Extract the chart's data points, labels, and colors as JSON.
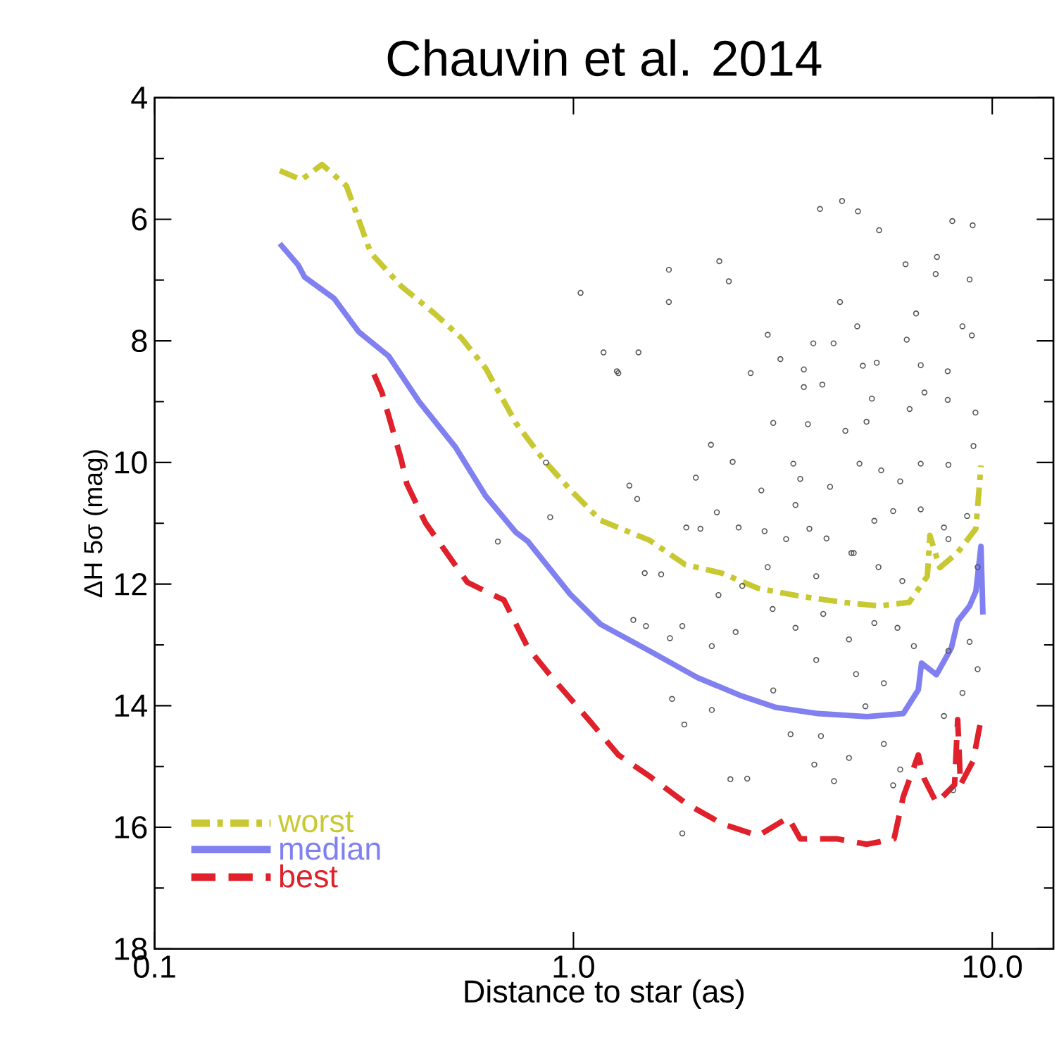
{
  "chart_data": {
    "type": "line",
    "title": "Chauvin et al. 2014",
    "xlabel": "Distance to star (as)",
    "ylabel": "ΔH 5σ (mag)",
    "log": "x",
    "xlim": [
      0.1,
      14
    ],
    "xticks": [
      0.1,
      {
        "value": 1,
        "label": "1.0"
      },
      {
        "value": 10,
        "label": "10.0"
      }
    ],
    "ylim": [
      18,
      4
    ],
    "yticks": [
      4,
      6,
      8,
      10,
      12,
      14,
      16,
      18
    ],
    "legend": "bottom left",
    "marker": "none",
    "series": [
      {
        "name": "worst",
        "color": "#c8c832",
        "line_style": "dashdot",
        "x": [
          0.199,
          0.224,
          0.251,
          0.287,
          0.328,
          0.388,
          0.466,
          0.54,
          0.617,
          0.729,
          0.847,
          0.983,
          1.16,
          1.52,
          1.85,
          2.26,
          2.76,
          3.48,
          4.4,
          5.37,
          6.34,
          7.0,
          7.1,
          7.5,
          8.27,
          9.14,
          9.4
        ],
        "values": [
          5.2,
          5.35,
          5.1,
          5.45,
          6.55,
          7.1,
          7.55,
          7.95,
          8.45,
          9.35,
          9.95,
          10.45,
          10.95,
          11.28,
          11.68,
          11.82,
          12.07,
          12.2,
          12.3,
          12.36,
          12.3,
          11.87,
          11.2,
          11.73,
          11.48,
          11.09,
          10.05
        ]
      },
      {
        "name": "median",
        "color": "#8080f0",
        "line_style": "solid",
        "x": [
          0.199,
          0.22,
          0.228,
          0.268,
          0.307,
          0.362,
          0.428,
          0.523,
          0.617,
          0.729,
          0.779,
          0.983,
          1.16,
          1.52,
          1.98,
          2.5,
          3.05,
          3.84,
          5.02,
          6.13,
          6.66,
          6.78,
          7.36,
          7.99,
          8.27,
          8.83,
          9.14,
          9.4,
          9.5
        ],
        "values": [
          6.4,
          6.75,
          6.95,
          7.3,
          7.85,
          8.25,
          9.0,
          9.75,
          10.55,
          11.15,
          11.3,
          12.17,
          12.66,
          13.1,
          13.54,
          13.83,
          14.03,
          14.13,
          14.18,
          14.13,
          13.74,
          13.3,
          13.49,
          13.05,
          12.61,
          12.36,
          12.12,
          11.38,
          12.5
        ]
      },
      {
        "name": "best",
        "color": "#e0202a",
        "line_style": "dashed",
        "x": [
          0.334,
          0.349,
          0.388,
          0.4,
          0.443,
          0.558,
          0.638,
          0.682,
          0.779,
          0.89,
          1.087,
          1.28,
          1.52,
          1.85,
          2.26,
          2.76,
          3.26,
          3.48,
          4.25,
          5.02,
          5.83,
          6.13,
          6.66,
          6.88,
          7.36,
          8.13,
          8.27,
          8.4,
          9.0,
          9.4
        ],
        "values": [
          8.55,
          8.85,
          9.95,
          10.35,
          10.99,
          11.97,
          12.17,
          12.26,
          13.05,
          13.54,
          14.23,
          14.81,
          15.16,
          15.6,
          15.94,
          16.14,
          15.84,
          16.19,
          16.19,
          16.28,
          16.19,
          15.5,
          14.81,
          15.2,
          15.6,
          15.3,
          14.23,
          15.3,
          14.91,
          14.23
        ]
      },
      {
        "type": "scatter",
        "marker": "circle",
        "color": "#555555",
        "x": [
          3.88,
          4.38,
          4.78,
          5.37,
          8.03,
          8.98,
          1.69,
          2.23,
          2.35,
          1.04,
          1.69,
          4.33,
          6.21,
          7.38,
          7.33,
          8.83,
          6.58,
          8.49,
          8.94,
          1.18,
          1.43,
          1.28,
          2.91,
          3.74,
          4.18,
          4.76,
          3.12,
          2.65,
          3.55,
          3.55,
          3.93,
          4.91,
          5.3,
          6.25,
          6.75,
          7.83,
          5.16,
          6.35,
          6.89,
          7.83,
          9.12,
          3.0,
          3.63,
          5.01,
          4.46,
          2.13,
          2.4,
          3.35,
          3.48,
          1.96,
          1.36,
          1.42,
          2.81,
          3.39,
          4.1,
          4.82,
          5.43,
          6.03,
          6.75,
          7.86,
          9.02,
          1.86,
          2.01,
          2.2,
          2.48,
          2.86,
          3.22,
          3.66,
          4.02,
          4.61,
          5.23,
          5.8,
          6.75,
          7.67,
          8.71,
          1.48,
          1.62,
          2.22,
          2.53,
          2.91,
          3.8,
          4.67,
          5.35,
          6.1,
          7.86,
          1.39,
          1.49,
          1.7,
          1.82,
          2.14,
          2.44,
          2.99,
          3.39,
          3.95,
          4.55,
          5.23,
          5.94,
          6.5,
          7.86,
          8.83,
          3.8,
          4.73,
          5.51,
          4.98,
          1.72,
          1.84,
          2.14,
          3.0,
          3.3,
          3.9,
          4.55,
          5.51,
          6.03,
          5.8,
          2.37,
          3.76,
          4.19,
          7.67,
          8.49,
          8.07,
          9.23,
          9.23,
          1.82,
          2.6,
          1.27,
          0.88,
          0.86,
          0.66
        ],
        "values": [
          5.83,
          5.7,
          5.87,
          6.18,
          6.03,
          6.1,
          6.83,
          6.69,
          7.02,
          7.21,
          7.36,
          7.36,
          6.74,
          6.62,
          6.9,
          6.99,
          7.55,
          7.76,
          7.91,
          8.19,
          8.19,
          8.53,
          7.9,
          8.04,
          8.04,
          7.76,
          8.3,
          8.53,
          8.47,
          8.76,
          8.72,
          8.41,
          8.36,
          7.98,
          8.4,
          8.5,
          8.95,
          9.12,
          8.85,
          8.97,
          9.18,
          9.35,
          9.37,
          9.33,
          9.48,
          9.71,
          9.99,
          10.02,
          10.27,
          10.25,
          10.38,
          10.6,
          10.46,
          10.7,
          10.4,
          10.02,
          10.13,
          10.31,
          10.02,
          10.04,
          9.73,
          11.07,
          11.09,
          10.82,
          11.07,
          11.13,
          11.26,
          11.09,
          11.25,
          11.49,
          10.96,
          10.8,
          10.77,
          11.07,
          10.88,
          11.82,
          11.84,
          12.18,
          12.03,
          11.72,
          11.87,
          11.49,
          11.72,
          11.95,
          11.26,
          12.59,
          12.69,
          12.89,
          12.69,
          13.02,
          12.79,
          12.41,
          12.72,
          12.49,
          12.91,
          12.64,
          12.72,
          13.02,
          13.1,
          12.95,
          13.25,
          13.48,
          13.63,
          14.01,
          13.89,
          14.31,
          14.07,
          13.75,
          14.47,
          14.5,
          14.86,
          14.63,
          15.05,
          15.31,
          15.21,
          14.97,
          15.24,
          14.17,
          13.79,
          15.39,
          13.4,
          11.72,
          16.1,
          15.2,
          8.5,
          10.9,
          10.0,
          11.3
        ]
      }
    ]
  }
}
